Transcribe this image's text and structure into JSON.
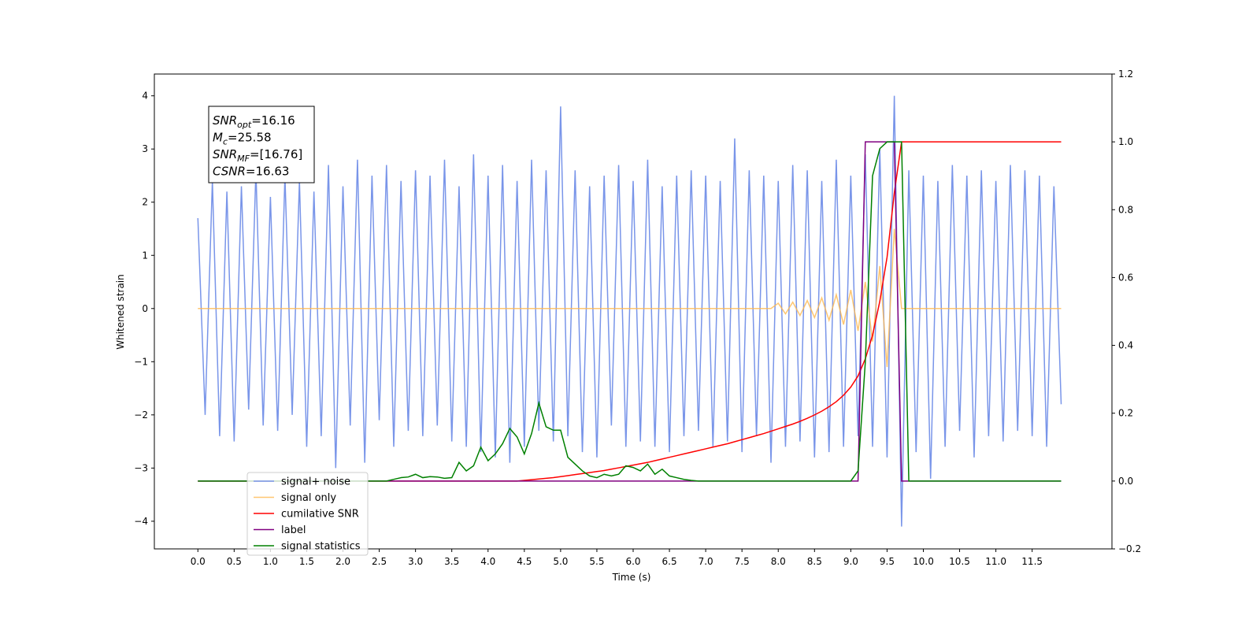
{
  "chart_data": {
    "type": "line",
    "xlabel": "Time (s)",
    "ylabel": "Whitened strain",
    "xlim": [
      -0.6,
      12.6
    ],
    "ylim": [
      -4.52,
      4.41
    ],
    "y2lim": [
      -0.2,
      1.2
    ],
    "xticks": [
      {
        "value": 0,
        "label": "0.0"
      },
      0.5,
      {
        "value": 1,
        "label": "1.0"
      },
      1.5,
      {
        "value": 2,
        "label": "2.0"
      },
      2.5,
      {
        "value": 3,
        "label": "3.0"
      },
      3.5,
      {
        "value": 4,
        "label": "4.0"
      },
      4.5,
      {
        "value": 5,
        "label": "5.0"
      },
      5.5,
      {
        "value": 6,
        "label": "6.0"
      },
      6.5,
      {
        "value": 7,
        "label": "7.0"
      },
      7.5,
      {
        "value": 8,
        "label": "8.0"
      },
      8.5,
      {
        "value": 9,
        "label": "9.0"
      },
      9.5,
      {
        "value": 10,
        "label": "10.0"
      },
      10.5,
      {
        "value": 11,
        "label": "11.0"
      },
      11.5
    ],
    "yticks": [
      {
        "value": -4,
        "label": "−4"
      },
      {
        "value": -3,
        "label": "−3"
      },
      {
        "value": -2,
        "label": "−2"
      },
      {
        "value": -1,
        "label": "−1"
      },
      0,
      1,
      2,
      3,
      4
    ],
    "y2ticks": [
      {
        "value": -0.2,
        "label": "−0.2"
      },
      {
        "value": 0,
        "label": "0.0"
      },
      0.2,
      0.4,
      0.6,
      0.8,
      {
        "value": 1,
        "label": "1.0"
      },
      1.2
    ],
    "legend": "lower left",
    "annotations": [
      {
        "base": "SNR",
        "sub": "opt",
        "rest": "=16.16"
      },
      {
        "base": "M",
        "sub": "c",
        "rest": "=25.58"
      },
      {
        "base": "SNR",
        "sub": "MF",
        "rest": "=[16.76]"
      },
      {
        "base": "CSNR",
        "sub": "",
        "rest": "=16.63"
      }
    ],
    "x": [
      0.0,
      0.1,
      0.2,
      0.3,
      0.4,
      0.5,
      0.6,
      0.7,
      0.8,
      0.9,
      1.0,
      1.1,
      1.2,
      1.3,
      1.4,
      1.5,
      1.6,
      1.7,
      1.8,
      1.9,
      2.0,
      2.1,
      2.2,
      2.3,
      2.4,
      2.5,
      2.6,
      2.7,
      2.8,
      2.9,
      3.0,
      3.1,
      3.2,
      3.3,
      3.4,
      3.5,
      3.6,
      3.7,
      3.8,
      3.9,
      4.0,
      4.1,
      4.2,
      4.3,
      4.4,
      4.5,
      4.6,
      4.7,
      4.8,
      4.9,
      5.0,
      5.1,
      5.2,
      5.3,
      5.4,
      5.5,
      5.6,
      5.7,
      5.8,
      5.9,
      6.0,
      6.1,
      6.2,
      6.3,
      6.4,
      6.5,
      6.6,
      6.7,
      6.8,
      6.9,
      7.0,
      7.1,
      7.2,
      7.3,
      7.4,
      7.5,
      7.6,
      7.7,
      7.8,
      7.9,
      8.0,
      8.1,
      8.2,
      8.3,
      8.4,
      8.5,
      8.6,
      8.7,
      8.8,
      8.9,
      9.0,
      9.1,
      9.2,
      9.3,
      9.4,
      9.5,
      9.6,
      9.7,
      9.8,
      9.9,
      10.0,
      10.1,
      10.2,
      10.3,
      10.4,
      10.5,
      10.6,
      10.7,
      10.8,
      10.9,
      11.0,
      11.1,
      11.2,
      11.3,
      11.4,
      11.5,
      11.6,
      11.7,
      11.8,
      11.9
    ],
    "series": [
      {
        "name": "signal+ noise",
        "color": "#7995e9",
        "axis": "y",
        "values": [
          1.7,
          -2.0,
          2.4,
          -2.4,
          2.2,
          -2.5,
          2.3,
          -1.9,
          2.6,
          -2.2,
          2.1,
          -2.3,
          2.5,
          -2.0,
          2.4,
          -2.6,
          2.2,
          -2.4,
          2.7,
          -3.0,
          2.3,
          -2.2,
          2.8,
          -2.9,
          2.5,
          -2.1,
          2.7,
          -2.6,
          2.4,
          -2.3,
          2.6,
          -2.4,
          2.5,
          -2.2,
          2.8,
          -2.5,
          2.3,
          -2.6,
          2.9,
          -2.7,
          2.5,
          -2.8,
          2.7,
          -2.9,
          2.4,
          -2.6,
          2.8,
          -2.3,
          2.6,
          -2.5,
          3.8,
          -2.4,
          2.6,
          -2.7,
          2.3,
          -2.8,
          2.5,
          -2.2,
          2.7,
          -2.6,
          2.4,
          -2.5,
          2.8,
          -2.6,
          2.3,
          -2.7,
          2.5,
          -2.4,
          2.6,
          -2.3,
          2.5,
          -2.6,
          2.4,
          -2.5,
          3.2,
          -2.7,
          2.6,
          -2.4,
          2.5,
          -2.9,
          2.4,
          -2.6,
          2.7,
          -2.5,
          2.6,
          -2.8,
          2.4,
          -2.7,
          2.8,
          -2.6,
          2.5,
          -2.4,
          2.9,
          -2.6,
          3.0,
          -2.8,
          4.0,
          -4.1,
          2.6,
          -2.7,
          2.5,
          -3.2,
          2.4,
          -2.6,
          2.7,
          -2.3,
          2.5,
          -2.8,
          2.6,
          -2.4,
          2.4,
          -2.5,
          2.7,
          -2.3,
          2.6,
          -2.4,
          2.5,
          -2.6,
          2.3,
          -1.8
        ]
      },
      {
        "name": "signal only",
        "color": "#ffb84d",
        "axis": "y",
        "values": [
          0,
          0,
          0,
          0,
          0,
          0,
          0,
          0,
          0,
          0,
          0,
          0,
          0,
          0,
          0,
          0,
          0,
          0,
          0,
          0,
          0,
          0,
          0,
          0,
          0,
          0,
          0,
          0,
          0,
          0,
          0,
          0,
          0,
          0,
          0,
          0,
          0,
          0,
          0,
          0,
          0,
          0,
          0,
          0,
          0,
          0,
          0,
          0,
          0,
          0,
          0,
          0,
          0,
          0,
          0,
          0,
          0,
          0,
          0,
          0,
          0,
          0,
          0,
          0,
          0,
          0,
          0,
          0,
          0,
          0,
          0,
          0,
          0,
          0,
          0,
          0,
          0,
          0,
          0,
          0,
          0.1,
          -0.1,
          0.12,
          -0.13,
          0.15,
          -0.17,
          0.2,
          -0.22,
          0.26,
          -0.3,
          0.35,
          -0.42,
          0.5,
          -0.62,
          0.8,
          -1.1,
          1.5,
          0,
          0,
          0,
          0,
          0,
          0,
          0,
          0,
          0,
          0,
          0,
          0,
          0,
          0,
          0,
          0,
          0,
          0,
          0,
          0,
          0,
          0,
          0
        ]
      },
      {
        "name": "cumilative SNR",
        "color": "#ff0000",
        "axis": "y2",
        "values": [
          0,
          0,
          0,
          0,
          0,
          0,
          0,
          0,
          0,
          0,
          0,
          0,
          0,
          0,
          0,
          0,
          0,
          0,
          0,
          0,
          0,
          0,
          0,
          0,
          0,
          0,
          0,
          0,
          0,
          0,
          0,
          0,
          0,
          0,
          0,
          0,
          0,
          0,
          0,
          0,
          0,
          0,
          0,
          0,
          0,
          0.002,
          0.004,
          0.006,
          0.008,
          0.01,
          0.013,
          0.016,
          0.019,
          0.022,
          0.025,
          0.028,
          0.031,
          0.035,
          0.039,
          0.043,
          0.047,
          0.051,
          0.055,
          0.06,
          0.065,
          0.07,
          0.075,
          0.08,
          0.085,
          0.09,
          0.095,
          0.1,
          0.105,
          0.11,
          0.116,
          0.122,
          0.128,
          0.134,
          0.14,
          0.147,
          0.154,
          0.161,
          0.168,
          0.176,
          0.185,
          0.195,
          0.206,
          0.219,
          0.234,
          0.253,
          0.277,
          0.31,
          0.36,
          0.43,
          0.53,
          0.66,
          0.85,
          1,
          1,
          1,
          1,
          1,
          1,
          1,
          1,
          1,
          1,
          1,
          1,
          1,
          1,
          1,
          1,
          1,
          1,
          1,
          1,
          1,
          1,
          1
        ]
      },
      {
        "name": "label",
        "color": "#800080",
        "axis": "y2",
        "values": [
          0,
          0,
          0,
          0,
          0,
          0,
          0,
          0,
          0,
          0,
          0,
          0,
          0,
          0,
          0,
          0,
          0,
          0,
          0,
          0,
          0,
          0,
          0,
          0,
          0,
          0,
          0,
          0,
          0,
          0,
          0,
          0,
          0,
          0,
          0,
          0,
          0,
          0,
          0,
          0,
          0,
          0,
          0,
          0,
          0,
          0,
          0,
          0,
          0,
          0,
          0,
          0,
          0,
          0,
          0,
          0,
          0,
          0,
          0,
          0,
          0,
          0,
          0,
          0,
          0,
          0,
          0,
          0,
          0,
          0,
          0,
          0,
          0,
          0,
          0,
          0,
          0,
          0,
          0,
          0,
          0,
          0,
          0,
          0,
          0,
          0,
          0,
          0,
          0,
          0,
          0,
          0,
          1,
          1,
          1,
          1,
          1,
          0,
          0,
          0,
          0,
          0,
          0,
          0,
          0,
          0,
          0,
          0,
          0,
          0,
          0,
          0,
          0,
          0,
          0,
          0,
          0,
          0,
          0,
          0
        ]
      },
      {
        "name": "signal statistics",
        "color": "#008000",
        "axis": "y2",
        "values": [
          0,
          0,
          0,
          0,
          0,
          0,
          0,
          0,
          0,
          0,
          0,
          0,
          0,
          0,
          0,
          0,
          0,
          0,
          0,
          0,
          0,
          0,
          0,
          0,
          0,
          0,
          0,
          0.005,
          0.01,
          0.012,
          0.02,
          0.01,
          0.013,
          0.012,
          0.008,
          0.01,
          0.055,
          0.03,
          0.045,
          0.1,
          0.06,
          0.08,
          0.11,
          0.155,
          0.13,
          0.08,
          0.14,
          0.23,
          0.16,
          0.15,
          0.15,
          0.07,
          0.05,
          0.03,
          0.015,
          0.01,
          0.02,
          0.015,
          0.02,
          0.045,
          0.04,
          0.03,
          0.05,
          0.02,
          0.035,
          0.015,
          0.01,
          0.005,
          0.002,
          0,
          0,
          0,
          0,
          0,
          0,
          0,
          0,
          0,
          0,
          0,
          0,
          0,
          0,
          0,
          0,
          0,
          0,
          0,
          0,
          0,
          0,
          0.03,
          0.35,
          0.9,
          0.98,
          1,
          1,
          1,
          0,
          0,
          0,
          0,
          0,
          0,
          0,
          0,
          0,
          0,
          0,
          0,
          0,
          0,
          0,
          0,
          0,
          0,
          0,
          0,
          0,
          0
        ]
      }
    ]
  }
}
